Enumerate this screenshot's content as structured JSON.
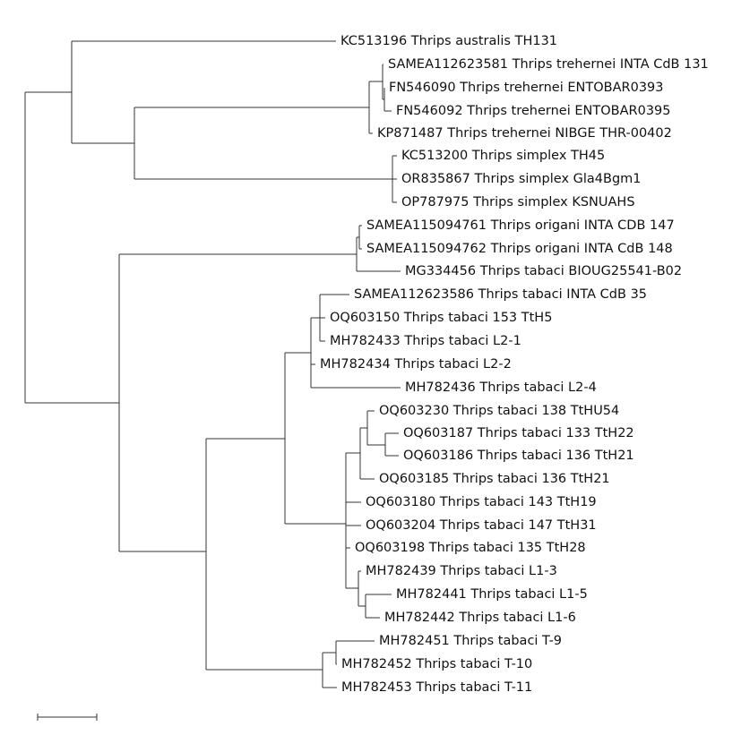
{
  "leaves": [
    "KC513196 Thrips australis TH131",
    "SAMEA112623581 Thrips trehernei INTA CdB 131",
    "FN546090 Thrips trehernei ENTOBAR0393",
    "FN546092 Thrips trehernei ENTOBAR0395",
    "KP871487 Thrips trehernei NIBGE THR-00402",
    "KC513200 Thrips simplex TH45",
    "OR835867 Thrips simplex Gla4Bgm1",
    "OP787975 Thrips simplex KSNUAHS",
    "SAMEA115094761 Thrips origani INTA CDB 147",
    "SAMEA115094762 Thrips origani INTA CdB 148",
    "MG334456 Thrips tabaci BIOUG25541-B02",
    "SAMEA112623586 Thrips tabaci INTA CdB 35",
    "OQ603150 Thrips tabaci 153 TtH5",
    "MH782433 Thrips tabaci L2-1",
    "MH782434 Thrips tabaci L2-2",
    "MH782436 Thrips tabaci L2-4",
    "OQ603230 Thrips tabaci 138 TtHU54",
    "OQ603187 Thrips tabaci 133 TtH22",
    "OQ603186 Thrips tabaci 136 TtH21",
    "OQ603185 Thrips tabaci 136 TtH21",
    "OQ603180 Thrips tabaci 143 TtH19",
    "OQ603204 Thrips tabaci 147 TtH31",
    "OQ603198 Thrips tabaci 135 TtH28",
    "MH782439 Thrips tabaci L1-3",
    "MH782441 Thrips tabaci L1-5",
    "MH782442 Thrips tabaci L1-6",
    "MH782451 Thrips tabaci T-9",
    "MH782452 Thrips tabaci T-10",
    "MH782453 Thrips tabaci T-11"
  ]
}
